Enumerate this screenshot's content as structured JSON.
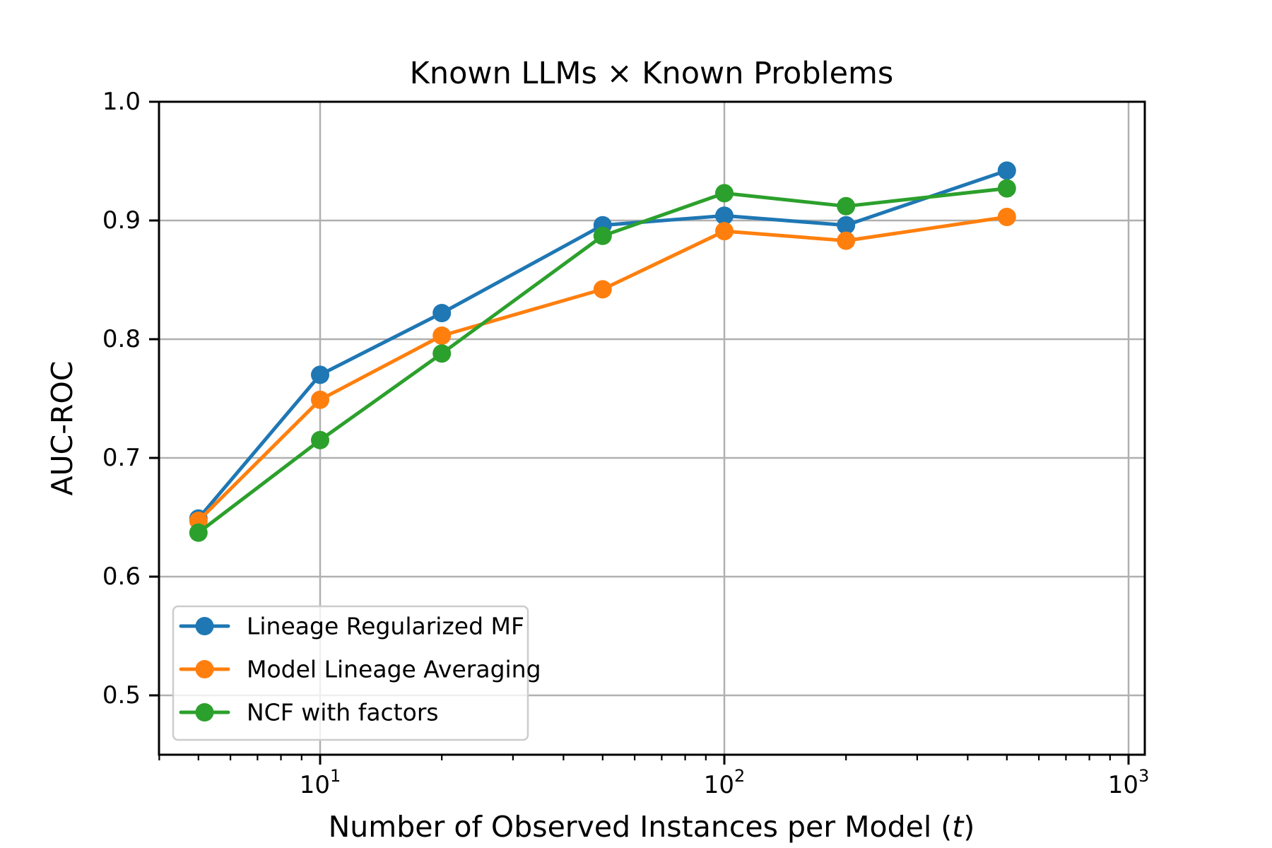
{
  "chart_data": {
    "type": "line",
    "title": "Known LLMs × Known Problems",
    "xlabel": "Number of Observed Instances per Model (t)",
    "xlabel_parts": {
      "prefix": "Number of Observed Instances per Model (",
      "italic": "t",
      "suffix": ")"
    },
    "ylabel": "AUC-ROC",
    "x_scale": "log",
    "grid": true,
    "legend_position": "lower left",
    "x": [
      5,
      10,
      20,
      50,
      100,
      200,
      500
    ],
    "series": [
      {
        "name": "Lineage Regularized MF",
        "color": "#1f77b4",
        "values": [
          0.649,
          0.77,
          0.822,
          0.896,
          0.904,
          0.896,
          0.942
        ]
      },
      {
        "name": "Model Lineage Averaging",
        "color": "#ff7f0e",
        "values": [
          0.647,
          0.749,
          0.803,
          0.842,
          0.891,
          0.883,
          0.903
        ]
      },
      {
        "name": "NCF with factors",
        "color": "#2ca02c",
        "values": [
          0.637,
          0.715,
          0.788,
          0.887,
          0.923,
          0.912,
          0.927
        ]
      }
    ],
    "xlim": [
      4,
      1096
    ],
    "ylim": [
      0.45,
      1.0
    ],
    "y_ticks": [
      {
        "value": 0.5,
        "label": "0.5"
      },
      {
        "value": 0.6,
        "label": "0.6"
      },
      {
        "value": 0.7,
        "label": "0.7"
      },
      {
        "value": 0.8,
        "label": "0.8"
      },
      {
        "value": 0.9,
        "label": "0.9"
      },
      {
        "value": 1.0,
        "label": "1.0"
      }
    ],
    "x_major_ticks": [
      {
        "value": 10,
        "base": "10",
        "exp": "1"
      },
      {
        "value": 100,
        "base": "10",
        "exp": "2"
      },
      {
        "value": 1000,
        "base": "10",
        "exp": "3"
      }
    ],
    "colors": {
      "grid": "#b0b0b0",
      "spine": "#000000",
      "text": "#000000",
      "legend_border": "#cccccc",
      "background": "#ffffff"
    }
  }
}
